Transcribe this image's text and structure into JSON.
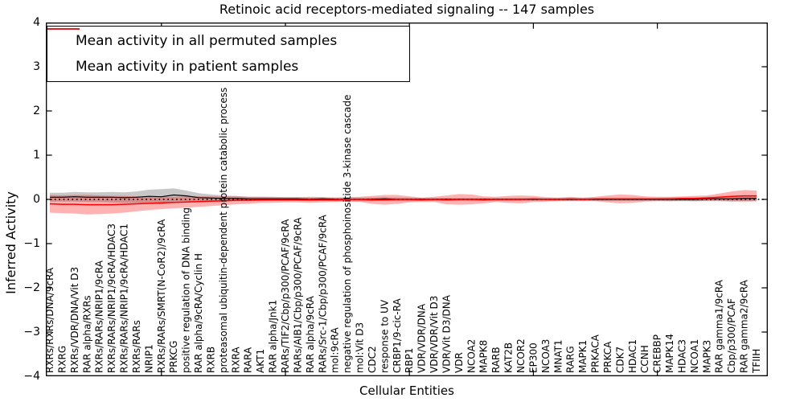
{
  "figure": {
    "title": "Retinoic acid receptors-mediated signaling -- 147 samples"
  },
  "legend": {
    "items": [
      {
        "label": "Mean activity in all permuted samples",
        "color": "#000000"
      },
      {
        "label": "Mean activity in patient samples",
        "color": "#ff0000"
      }
    ]
  },
  "chart_data": {
    "type": "line",
    "title": "Retinoic acid receptors-mediated signaling -- 147 samples",
    "xlabel": "Cellular Entities",
    "ylabel": "Inferred Activity",
    "ylim": [
      -4,
      4
    ],
    "yticks": [
      -4,
      -3,
      -2,
      -1,
      0,
      1,
      2,
      3,
      4
    ],
    "x_major_tick_positions": [
      10,
      20,
      30,
      40,
      50
    ],
    "grid": false,
    "legend_position": "upper left",
    "zero_line": {
      "y": 0,
      "style": "dotted",
      "color": "#000000"
    },
    "categories": [
      "RXRs/RXRs/DNA/9cRA",
      "RXRG",
      "RXRs/VDR/DNA/Vit D3",
      "RAR alpha/RXRs",
      "RXRs/RARs/NRIP1/9cRA",
      "RXRs/RARs/NRIP1/9cRA/HDAC3",
      "RXRs/RARs/NRIP1/9cRA/HDAC1",
      "RXRs/RARs",
      "NRIP1",
      "RXRs/RARs/SMRT(N-CoR2)/9cRA",
      "PRKCG",
      "positive regulation of DNA binding",
      "RAR alpha/9cRA/Cyclin H",
      "RXRB",
      "proteasomal ubiquitin-dependent protein catabolic process",
      "RXRA",
      "RARA",
      "AKT1",
      "RAR alpha/Jnk1",
      "RARs/TIF2/Cbp/p300/PCAF/9cRA",
      "RARs/AIB1/Cbp/p300/PCAF/9cRA",
      "RAR alpha/9cRA",
      "RARs/Src-1/Cbp/p300/PCAF/9cRA",
      "mol:9cRA",
      "negative regulation of phosphoinositide 3-kinase cascade",
      "mol:Vit D3",
      "CDC2",
      "response to UV",
      "CRBP1/9-cic-RA",
      "RBP1",
      "VDR/VDR/DNA",
      "VDR/VDR/Vit D3",
      "VDR/Vit D3/DNA",
      "VDR",
      "NCOA2",
      "MAPK8",
      "RARB",
      "KAT2B",
      "NCOR2",
      "EP300",
      "NCOA3",
      "MNAT1",
      "RARG",
      "MAPK1",
      "PRKACA",
      "PRKCA",
      "CDK7",
      "HDAC1",
      "CCNH",
      "CREBBP",
      "MAPK14",
      "HDAC3",
      "NCOA1",
      "MAPK3",
      "RAR gamma1/9cRA",
      "Cbp/p300/PCAF",
      "RAR gamma2/9cRA",
      "TFIIH"
    ],
    "series": [
      {
        "name": "Mean activity in all permuted samples",
        "color": "#000000",
        "band_color": "rgba(0,0,0,0.22)",
        "values": [
          0.05,
          0.05,
          0.06,
          0.05,
          0.05,
          0.05,
          0.04,
          0.05,
          0.07,
          0.06,
          0.1,
          0.08,
          0.04,
          0.03,
          0.02,
          0.02,
          0.01,
          0.01,
          0.01,
          0.01,
          0.01,
          0.0,
          0.01,
          0.0,
          0.0,
          0.0,
          0.0,
          0.01,
          0.0,
          0.0,
          0.0,
          0.0,
          0.0,
          0.0,
          0.0,
          0.0,
          0.0,
          0.0,
          0.0,
          0.0,
          0.0,
          0.0,
          0.0,
          0.0,
          0.0,
          0.0,
          0.0,
          0.0,
          0.0,
          0.0,
          0.0,
          0.0,
          0.0,
          0.01,
          0.01,
          0.01,
          0.02,
          0.02
        ],
        "band_halfwidth": [
          0.1,
          0.1,
          0.11,
          0.11,
          0.11,
          0.12,
          0.12,
          0.13,
          0.15,
          0.17,
          0.15,
          0.12,
          0.1,
          0.08,
          0.07,
          0.06,
          0.05,
          0.05,
          0.04,
          0.04,
          0.04,
          0.04,
          0.04,
          0.04,
          0.04,
          0.04,
          0.04,
          0.04,
          0.04,
          0.04,
          0.03,
          0.03,
          0.03,
          0.03,
          0.03,
          0.03,
          0.03,
          0.03,
          0.03,
          0.03,
          0.03,
          0.03,
          0.03,
          0.03,
          0.03,
          0.03,
          0.03,
          0.03,
          0.03,
          0.03,
          0.04,
          0.04,
          0.04,
          0.05,
          0.05,
          0.06,
          0.06,
          0.06
        ]
      },
      {
        "name": "Mean activity in patient samples",
        "color": "#ff0000",
        "band_color": "rgba(255,0,0,0.30)",
        "values": [
          -0.1,
          -0.11,
          -0.11,
          -0.12,
          -0.12,
          -0.12,
          -0.11,
          -0.1,
          -0.09,
          -0.08,
          -0.07,
          -0.06,
          -0.05,
          -0.04,
          -0.03,
          -0.02,
          -0.02,
          -0.01,
          -0.01,
          -0.01,
          -0.01,
          -0.01,
          -0.01,
          -0.01,
          0.0,
          0.0,
          -0.01,
          -0.01,
          0.0,
          0.0,
          -0.01,
          0.0,
          -0.01,
          0.0,
          0.0,
          -0.01,
          0.0,
          0.0,
          0.0,
          0.01,
          0.0,
          0.0,
          0.01,
          0.0,
          0.01,
          0.01,
          0.01,
          0.01,
          0.01,
          0.01,
          0.01,
          0.02,
          0.02,
          0.03,
          0.05,
          0.07,
          0.08,
          0.08
        ],
        "band_halfwidth": [
          0.2,
          0.2,
          0.21,
          0.22,
          0.21,
          0.2,
          0.19,
          0.17,
          0.15,
          0.14,
          0.13,
          0.13,
          0.12,
          0.11,
          0.1,
          0.09,
          0.08,
          0.07,
          0.07,
          0.06,
          0.06,
          0.07,
          0.06,
          0.05,
          0.05,
          0.06,
          0.09,
          0.11,
          0.1,
          0.07,
          0.05,
          0.06,
          0.1,
          0.12,
          0.11,
          0.08,
          0.06,
          0.08,
          0.09,
          0.07,
          0.05,
          0.04,
          0.05,
          0.04,
          0.05,
          0.08,
          0.1,
          0.09,
          0.06,
          0.05,
          0.05,
          0.05,
          0.06,
          0.06,
          0.08,
          0.11,
          0.13,
          0.12
        ]
      }
    ]
  }
}
